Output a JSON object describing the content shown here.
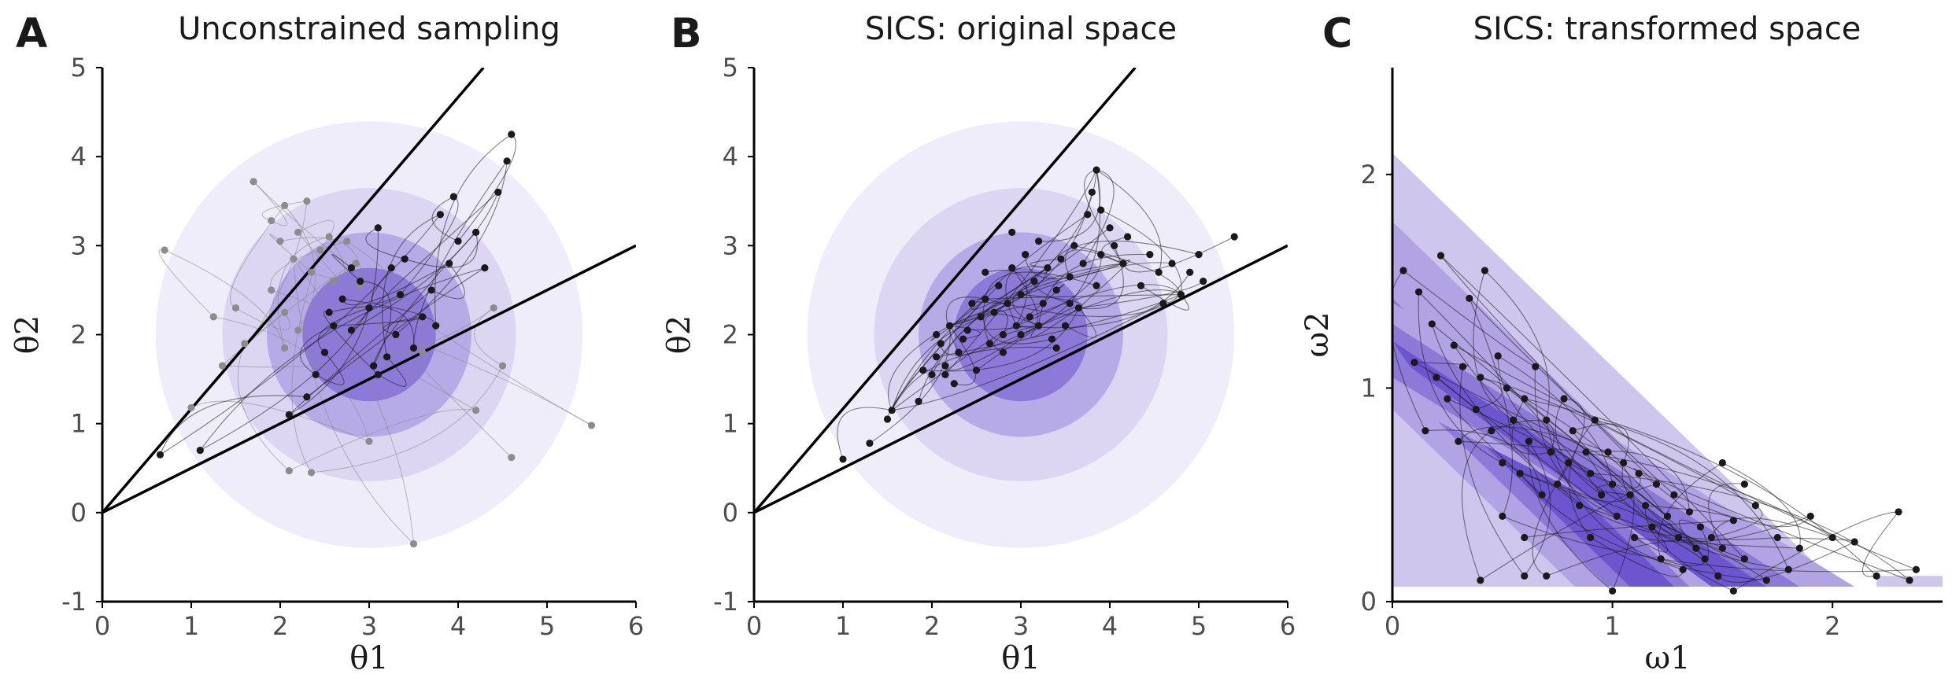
{
  "chart_data": [
    {
      "panel": "A",
      "type": "scatter",
      "title": "Unconstrained sampling",
      "xlabel": "θ1",
      "ylabel": "θ2",
      "xlim": [
        0,
        6
      ],
      "ylim": [
        -1,
        5
      ],
      "xticks": [
        "0",
        "1",
        "2",
        "3",
        "4",
        "5",
        "6"
      ],
      "yticks": [
        "-1",
        "0",
        "1",
        "2",
        "3",
        "4",
        "5"
      ],
      "grid": false,
      "background": {
        "kind": "radial",
        "center": [
          3,
          2
        ],
        "radii": [
          2.4,
          1.65,
          1.15,
          0.75
        ],
        "colors": [
          "#efedf9",
          "#dcd6f2",
          "#b7abe7",
          "#8c79d8"
        ]
      },
      "constraint_lines": [
        {
          "slope": 1.1667
        },
        {
          "slope": 0.5
        }
      ],
      "series": [
        {
          "color": "#8c8c8c",
          "points": [
            [
              0.7,
              2.95
            ],
            [
              1.0,
              1.18
            ],
            [
              1.35,
              1.65
            ],
            [
              1.25,
              2.2
            ],
            [
              1.7,
              3.72
            ],
            [
              1.9,
              3.28
            ],
            [
              2.0,
              3.05
            ],
            [
              2.05,
              3.45
            ],
            [
              2.15,
              2.85
            ],
            [
              2.2,
              3.15
            ],
            [
              2.3,
              3.5
            ],
            [
              2.35,
              2.7
            ],
            [
              2.55,
              3.1
            ],
            [
              2.75,
              3.05
            ],
            [
              2.85,
              2.8
            ],
            [
              2.9,
              2.55
            ],
            [
              1.9,
              2.5
            ],
            [
              2.05,
              2.25
            ],
            [
              2.2,
              2.05
            ],
            [
              2.05,
              1.85
            ],
            [
              1.5,
              2.3
            ],
            [
              1.6,
              1.9
            ],
            [
              2.1,
              0.47
            ],
            [
              2.35,
              0.45
            ],
            [
              3.0,
              0.8
            ],
            [
              3.5,
              -0.35
            ],
            [
              3.6,
              1.8
            ],
            [
              4.2,
              1.15
            ],
            [
              4.5,
              1.65
            ],
            [
              4.4,
              2.3
            ],
            [
              4.6,
              0.62
            ],
            [
              5.5,
              0.98
            ],
            [
              2.45,
              2.95
            ],
            [
              2.6,
              2.6
            ]
          ]
        },
        {
          "color": "#1a1a1a",
          "points": [
            [
              0.65,
              0.65
            ],
            [
              1.1,
              0.7
            ],
            [
              2.1,
              1.1
            ],
            [
              2.3,
              1.3
            ],
            [
              2.4,
              1.55
            ],
            [
              2.5,
              1.8
            ],
            [
              2.55,
              2.25
            ],
            [
              2.7,
              2.4
            ],
            [
              2.8,
              2.05
            ],
            [
              2.9,
              2.6
            ],
            [
              3.0,
              2.3
            ],
            [
              3.1,
              1.55
            ],
            [
              3.2,
              1.75
            ],
            [
              3.3,
              2.0
            ],
            [
              3.35,
              2.45
            ],
            [
              3.5,
              1.85
            ],
            [
              3.6,
              2.2
            ],
            [
              3.7,
              2.5
            ],
            [
              3.75,
              2.1
            ],
            [
              3.8,
              3.35
            ],
            [
              3.9,
              2.8
            ],
            [
              3.95,
              3.55
            ],
            [
              4.0,
              3.05
            ],
            [
              4.2,
              3.15
            ],
            [
              4.3,
              2.75
            ],
            [
              4.45,
              3.6
            ],
            [
              4.55,
              3.95
            ],
            [
              4.6,
              4.25
            ],
            [
              3.4,
              2.85
            ],
            [
              3.1,
              3.2
            ],
            [
              2.8,
              2.75
            ],
            [
              2.6,
              2.1
            ],
            [
              3.05,
              1.65
            ],
            [
              3.25,
              2.75
            ]
          ]
        }
      ]
    },
    {
      "panel": "B",
      "type": "scatter",
      "title": "SICS: original space",
      "xlabel": "θ1",
      "ylabel": "θ2",
      "xlim": [
        0,
        6
      ],
      "ylim": [
        -1,
        5
      ],
      "xticks": [
        "0",
        "1",
        "2",
        "3",
        "4",
        "5",
        "6"
      ],
      "yticks": [
        "-1",
        "0",
        "1",
        "2",
        "3",
        "4",
        "5"
      ],
      "grid": false,
      "background": {
        "kind": "radial",
        "center": [
          3,
          2
        ],
        "radii": [
          2.4,
          1.65,
          1.15,
          0.75
        ],
        "colors": [
          "#efedf9",
          "#dcd6f2",
          "#b7abe7",
          "#8c79d8"
        ]
      },
      "constraint_lines": [
        {
          "slope": 1.1667
        },
        {
          "slope": 0.5
        }
      ],
      "series": [
        {
          "color": "#1a1a1a",
          "points": [
            [
              1.0,
              0.6
            ],
            [
              1.3,
              0.78
            ],
            [
              1.5,
              1.05
            ],
            [
              1.55,
              1.15
            ],
            [
              1.85,
              1.25
            ],
            [
              1.9,
              1.6
            ],
            [
              2.0,
              1.55
            ],
            [
              2.05,
              1.75
            ],
            [
              2.1,
              1.9
            ],
            [
              2.15,
              1.55
            ],
            [
              2.2,
              2.1
            ],
            [
              2.25,
              1.45
            ],
            [
              2.3,
              1.8
            ],
            [
              2.4,
              2.05
            ],
            [
              2.45,
              2.35
            ],
            [
              2.5,
              1.6
            ],
            [
              2.55,
              2.2
            ],
            [
              2.6,
              2.4
            ],
            [
              2.65,
              1.9
            ],
            [
              2.7,
              2.25
            ],
            [
              2.75,
              2.55
            ],
            [
              2.8,
              2.0
            ],
            [
              2.85,
              2.35
            ],
            [
              2.9,
              2.75
            ],
            [
              2.95,
              2.1
            ],
            [
              3.0,
              2.45
            ],
            [
              3.05,
              2.9
            ],
            [
              3.1,
              2.2
            ],
            [
              3.15,
              2.6
            ],
            [
              3.2,
              3.05
            ],
            [
              3.25,
              2.35
            ],
            [
              3.3,
              2.75
            ],
            [
              3.35,
              1.95
            ],
            [
              3.4,
              2.5
            ],
            [
              3.45,
              2.85
            ],
            [
              3.5,
              2.1
            ],
            [
              3.55,
              2.65
            ],
            [
              3.6,
              3.0
            ],
            [
              3.65,
              2.3
            ],
            [
              3.7,
              2.8
            ],
            [
              3.75,
              3.35
            ],
            [
              3.8,
              3.6
            ],
            [
              3.85,
              2.55
            ],
            [
              3.9,
              2.9
            ],
            [
              4.0,
              3.2
            ],
            [
              4.15,
              2.8
            ],
            [
              4.2,
              3.1
            ],
            [
              4.35,
              2.55
            ],
            [
              4.45,
              2.9
            ],
            [
              4.55,
              2.7
            ],
            [
              4.6,
              2.35
            ],
            [
              4.7,
              2.8
            ],
            [
              4.8,
              2.45
            ],
            [
              4.9,
              2.7
            ],
            [
              5.0,
              2.9
            ],
            [
              5.05,
              2.6
            ],
            [
              5.4,
              3.1
            ],
            [
              3.0,
              2.0
            ],
            [
              2.8,
              1.8
            ],
            [
              3.2,
              2.1
            ],
            [
              3.4,
              1.85
            ],
            [
              2.35,
              1.95
            ],
            [
              2.05,
              2.0
            ],
            [
              2.6,
              2.7
            ],
            [
              3.55,
              2.35
            ],
            [
              4.05,
              3.0
            ],
            [
              3.85,
              3.85
            ],
            [
              3.9,
              3.4
            ],
            [
              2.15,
              1.65
            ],
            [
              2.9,
              3.15
            ]
          ]
        }
      ]
    },
    {
      "panel": "C",
      "type": "scatter",
      "title": "SICS: transformed space",
      "xlabel": "ω1",
      "ylabel": "ω2",
      "xlim": [
        0,
        2.5
      ],
      "ylim": [
        0,
        2.5
      ],
      "xticks": [
        "0",
        "1",
        "2"
      ],
      "yticks": [
        "0",
        "1",
        "2"
      ],
      "grid": false,
      "background": {
        "kind": "bands",
        "colors": [
          "#cfc6ee",
          "#b1a3e4",
          "#8c79d8",
          "#6c55cf"
        ]
      },
      "series": [
        {
          "color": "#1a1a1a",
          "points": [
            [
              0.05,
              1.55
            ],
            [
              0.1,
              1.12
            ],
            [
              0.12,
              1.45
            ],
            [
              0.15,
              0.8
            ],
            [
              0.18,
              1.3
            ],
            [
              0.2,
              1.05
            ],
            [
              0.22,
              1.62
            ],
            [
              0.25,
              0.95
            ],
            [
              0.28,
              1.2
            ],
            [
              0.3,
              0.75
            ],
            [
              0.32,
              1.1
            ],
            [
              0.35,
              1.42
            ],
            [
              0.38,
              0.9
            ],
            [
              0.4,
              1.05
            ],
            [
              0.42,
              1.55
            ],
            [
              0.45,
              0.8
            ],
            [
              0.48,
              1.15
            ],
            [
              0.5,
              0.65
            ],
            [
              0.52,
              1.0
            ],
            [
              0.55,
              0.85
            ],
            [
              0.58,
              0.6
            ],
            [
              0.6,
              0.95
            ],
            [
              0.62,
              0.75
            ],
            [
              0.65,
              1.1
            ],
            [
              0.68,
              0.5
            ],
            [
              0.7,
              0.85
            ],
            [
              0.72,
              0.7
            ],
            [
              0.75,
              0.55
            ],
            [
              0.78,
              0.95
            ],
            [
              0.8,
              0.65
            ],
            [
              0.82,
              0.8
            ],
            [
              0.85,
              0.45
            ],
            [
              0.88,
              0.7
            ],
            [
              0.9,
              0.6
            ],
            [
              0.92,
              0.85
            ],
            [
              0.95,
              0.5
            ],
            [
              0.98,
              0.7
            ],
            [
              1.0,
              0.55
            ],
            [
              1.02,
              0.4
            ],
            [
              1.05,
              0.65
            ],
            [
              1.08,
              0.5
            ],
            [
              1.1,
              0.3
            ],
            [
              1.12,
              0.6
            ],
            [
              1.15,
              0.45
            ],
            [
              1.18,
              0.35
            ],
            [
              1.2,
              0.55
            ],
            [
              1.22,
              0.2
            ],
            [
              1.25,
              0.4
            ],
            [
              1.28,
              0.5
            ],
            [
              1.3,
              0.3
            ],
            [
              1.32,
              0.15
            ],
            [
              1.35,
              0.42
            ],
            [
              1.38,
              0.25
            ],
            [
              1.4,
              0.35
            ],
            [
              1.42,
              0.2
            ],
            [
              1.45,
              0.3
            ],
            [
              1.48,
              0.12
            ],
            [
              1.5,
              0.25
            ],
            [
              1.55,
              0.38
            ],
            [
              1.6,
              0.2
            ],
            [
              1.65,
              0.45
            ],
            [
              1.7,
              0.1
            ],
            [
              1.75,
              0.3
            ],
            [
              1.8,
              0.15
            ],
            [
              1.85,
              0.25
            ],
            [
              1.9,
              0.4
            ],
            [
              2.0,
              0.3
            ],
            [
              2.1,
              0.28
            ],
            [
              2.2,
              0.12
            ],
            [
              2.3,
              0.42
            ],
            [
              2.35,
              0.1
            ],
            [
              2.38,
              0.15
            ],
            [
              0.4,
              0.1
            ],
            [
              0.6,
              0.12
            ],
            [
              0.7,
              0.12
            ],
            [
              1.0,
              0.05
            ],
            [
              1.55,
              0.05
            ],
            [
              0.9,
              0.3
            ],
            [
              1.6,
              0.55
            ],
            [
              1.5,
              0.65
            ],
            [
              0.5,
              0.4
            ],
            [
              0.6,
              0.3
            ]
          ]
        }
      ]
    }
  ]
}
